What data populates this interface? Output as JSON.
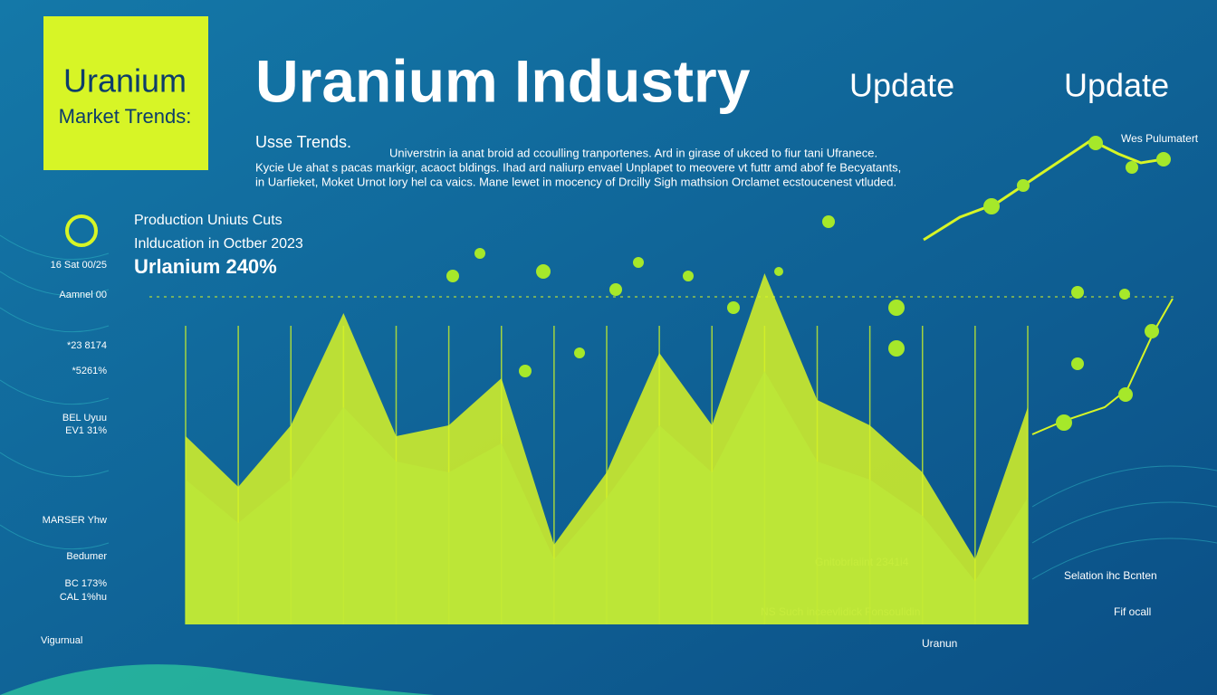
{
  "badge": {
    "title": "Uranium",
    "subtitle": "Market Trends:"
  },
  "header": {
    "title": "Uranium Industry",
    "tag1": "Update",
    "tag2": "Update"
  },
  "intro": {
    "heading": "Usse Trends.",
    "lines": [
      "Universtrin ia anat broid ad ccoulling tranportenes. Ard in girase of ukced to fiur tani Ufranece.",
      "Kycie Ue ahat s pacas markigr, acaoct bldings. Ihad ard naliurp envael Unplapet to meovere vt futtr amd abof fe Becyatants,",
      "in Uarfieket, Moket Urnot lory hel ca vaics. Mane lewet in mocency of Drcilly Sigh mathsion Orclamet ecstoucenest vtluded."
    ]
  },
  "callout": {
    "line1": "Production Uniuts Cuts",
    "line2": "Inlducation in Octber 2023",
    "line3": "Urlanium 240%"
  },
  "corner_label": "Wes Pulumatert",
  "side_labels": [
    "16 Sat 00/25",
    "Aamnel 00",
    "*23 8174",
    "*5261%",
    "BEL Uyuu",
    "EV1 31%",
    "MARSER Yhw",
    "Bedumer",
    "BC 173%",
    "CAL 1%hu",
    "Vigurnual"
  ],
  "bottom_labels": [
    "NS Such inceevlidick",
    "Fonsoulidin",
    "Gnitobrlaiint 2341i4",
    "Uranun",
    "Selation ihc Bcnten",
    "Fif ocall"
  ],
  "chart_data": {
    "type": "area",
    "categories": [
      null,
      null,
      null,
      null,
      null,
      null,
      null,
      null,
      null,
      null,
      null,
      null,
      null,
      null,
      null,
      null,
      null
    ],
    "series": [
      {
        "color": "#1ea6a8",
        "values": [
          40,
          28,
          40,
          60,
          45,
          42,
          50,
          18,
          35,
          55,
          42,
          70,
          45,
          40,
          30,
          12,
          35
        ]
      },
      {
        "color": "#d9f425",
        "values": [
          52,
          38,
          55,
          86,
          52,
          55,
          68,
          22,
          42,
          75,
          55,
          97,
          62,
          55,
          42,
          18,
          60
        ]
      }
    ],
    "ylim": [
      0,
      100
    ]
  }
}
